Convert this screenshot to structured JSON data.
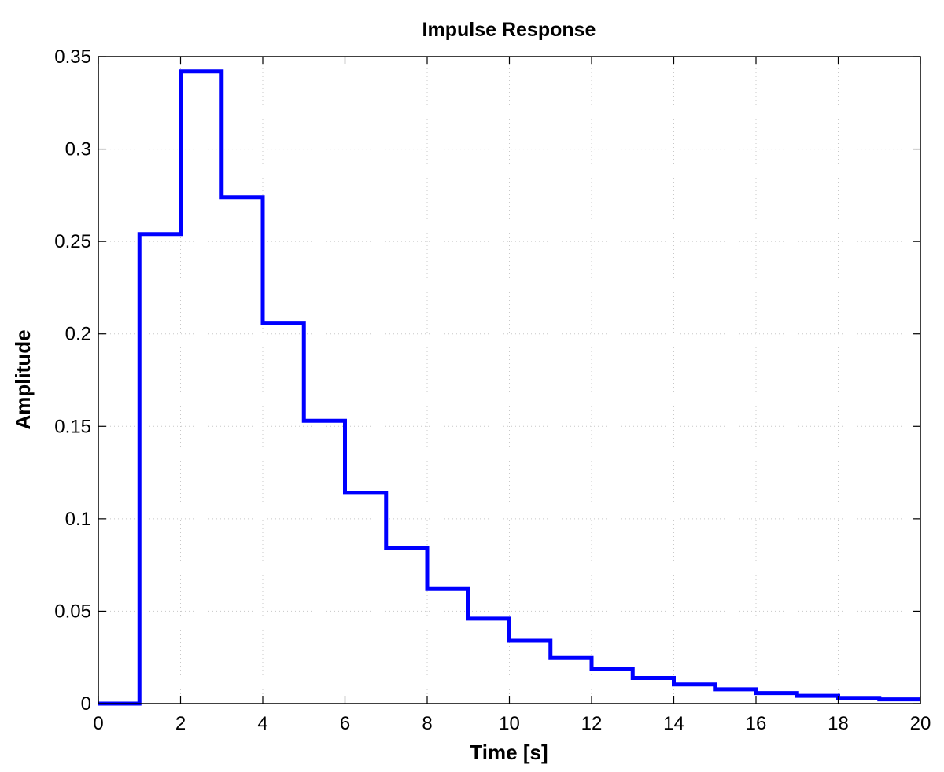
{
  "chart_data": {
    "type": "line",
    "style": "stairs",
    "title": "Impulse Response",
    "xlabel": "Time [s]",
    "ylabel": "Amplitude",
    "xlim": [
      0,
      20
    ],
    "ylim": [
      0,
      0.35
    ],
    "xticks": [
      0,
      2,
      4,
      6,
      8,
      10,
      12,
      14,
      16,
      18,
      20
    ],
    "yticks": [
      0,
      0.05,
      0.1,
      0.15,
      0.2,
      0.25,
      0.3,
      0.35
    ],
    "xtick_labels": [
      "0",
      "2",
      "4",
      "6",
      "8",
      "10",
      "12",
      "14",
      "16",
      "18",
      "20"
    ],
    "ytick_labels": [
      "0",
      "0.05",
      "0.1",
      "0.15",
      "0.2",
      "0.25",
      "0.3",
      "0.35"
    ],
    "grid": true,
    "box": true,
    "series": [
      {
        "color": "#0000ff",
        "x": [
          0,
          1,
          2,
          3,
          4,
          5,
          6,
          7,
          8,
          9,
          10,
          11,
          12,
          13,
          14,
          15,
          16,
          17,
          18,
          19,
          20
        ],
        "y": [
          0,
          0.254,
          0.342,
          0.274,
          0.206,
          0.153,
          0.114,
          0.084,
          0.062,
          0.046,
          0.034,
          0.025,
          0.0185,
          0.0138,
          0.0103,
          0.0077,
          0.0057,
          0.0042,
          0.0031,
          0.0023,
          0.0023
        ]
      }
    ]
  }
}
